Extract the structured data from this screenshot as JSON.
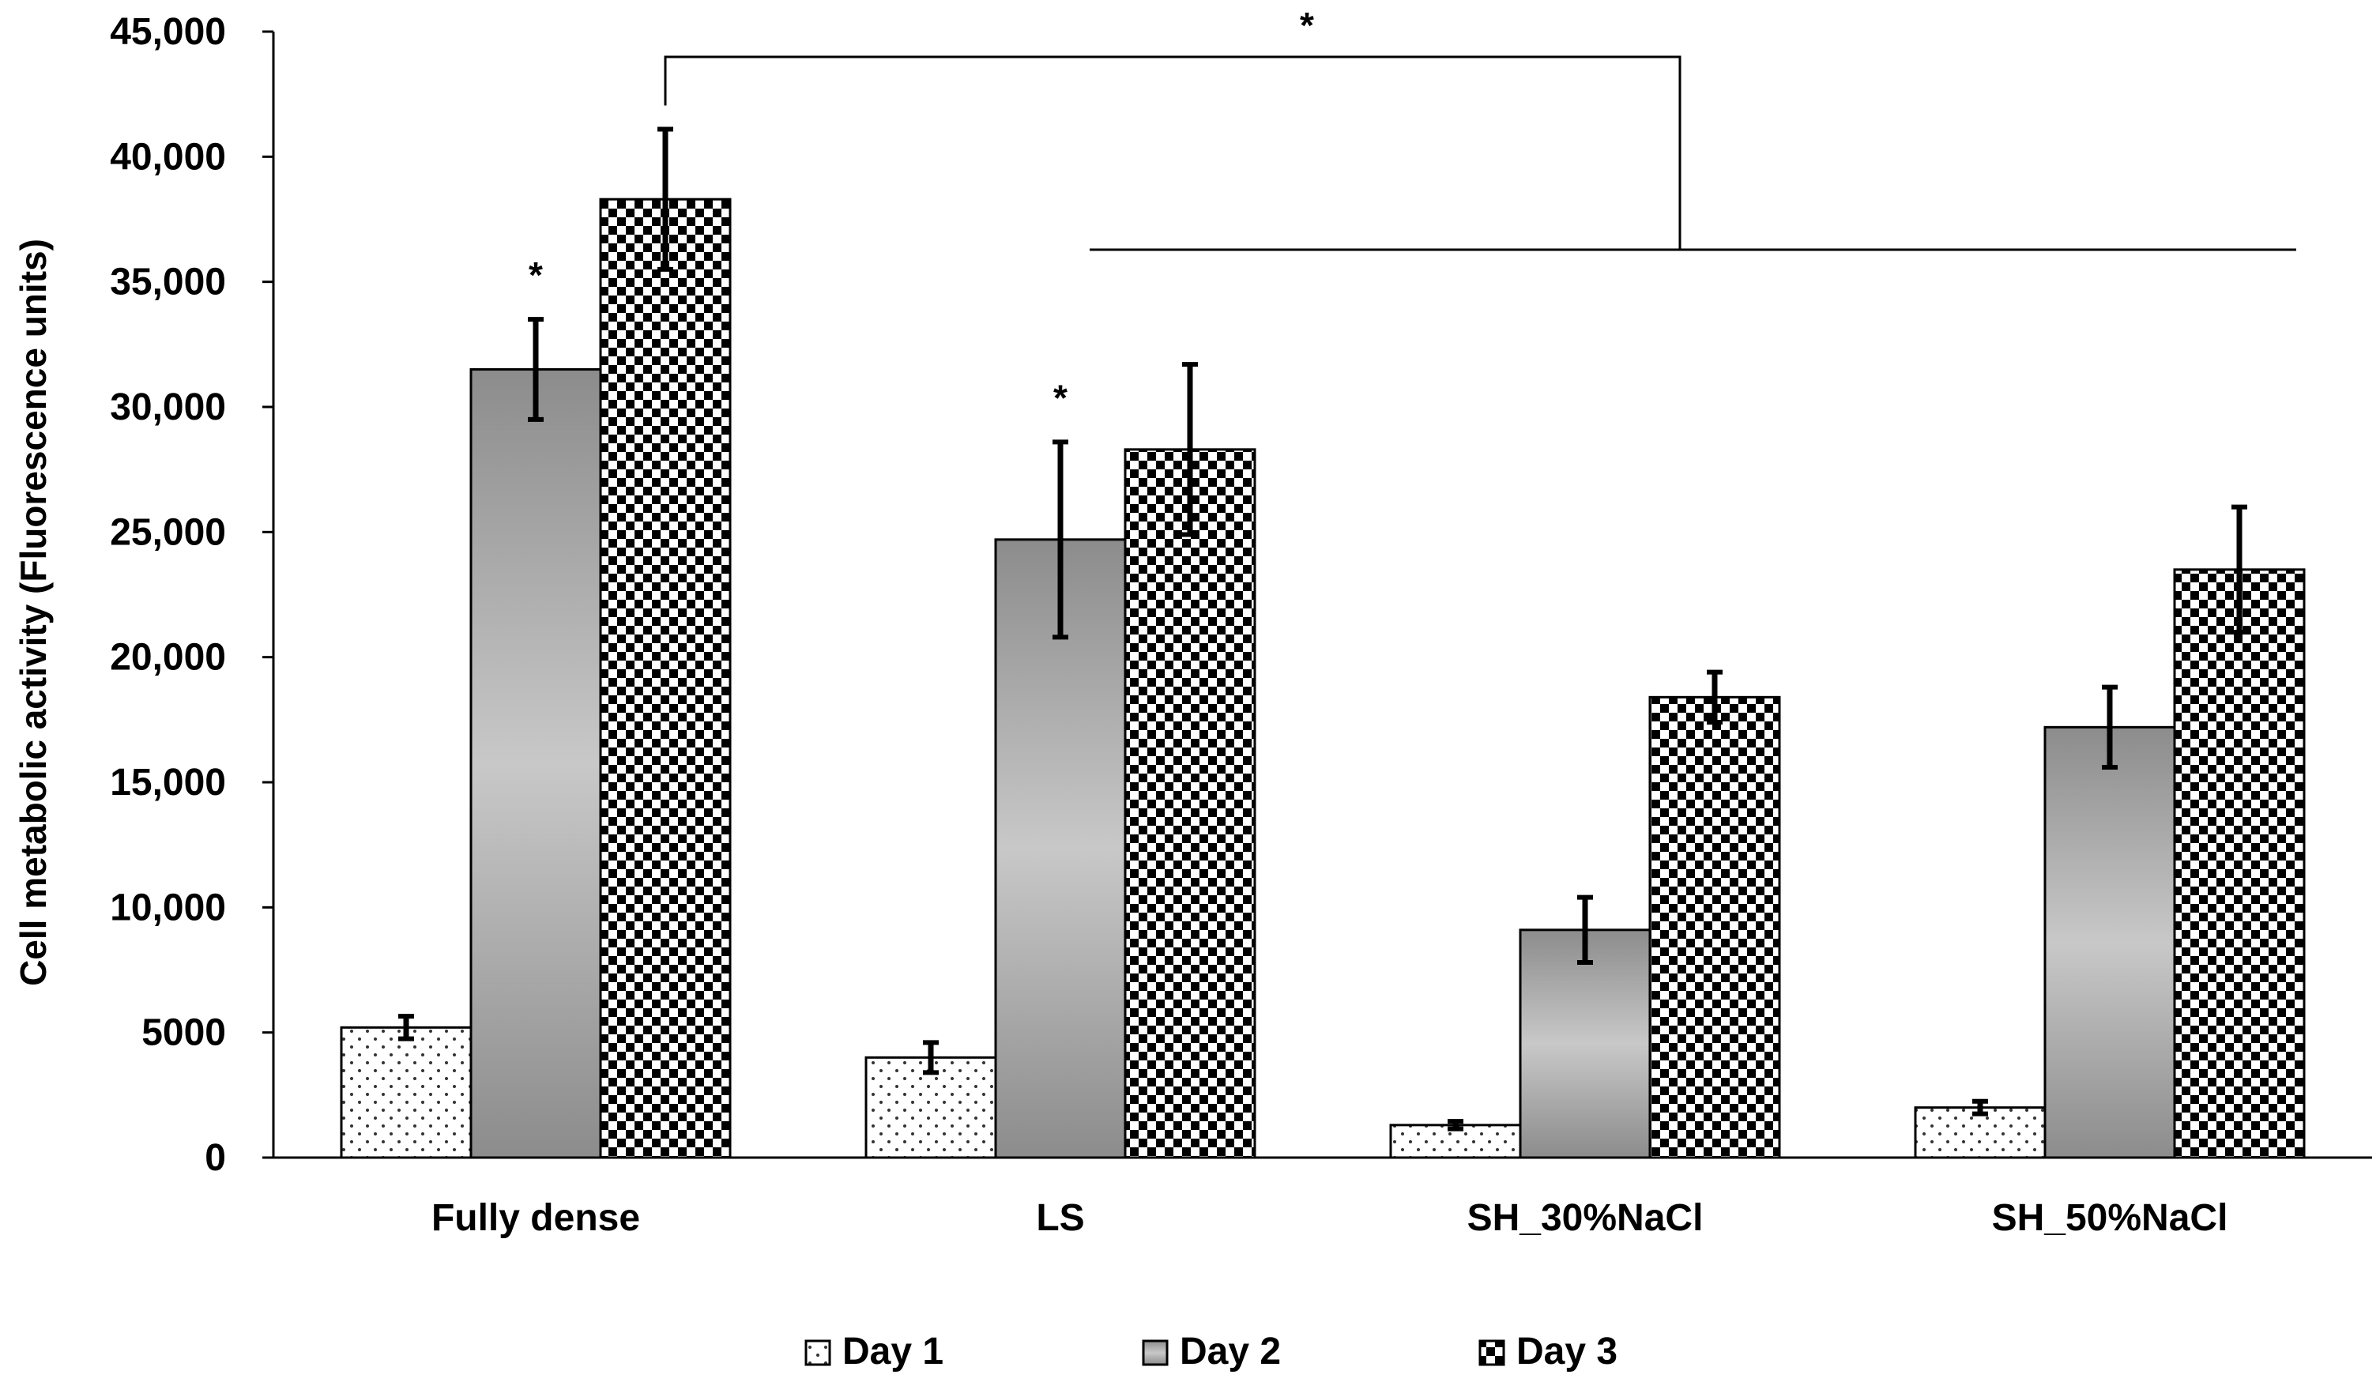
{
  "chart_data": {
    "type": "bar",
    "title": "",
    "xlabel": "",
    "ylabel": "Cell metabolic activity (Fluorescence units)",
    "ylim": [
      0,
      45000
    ],
    "y_ticks": [
      0,
      5000,
      10000,
      15000,
      20000,
      25000,
      30000,
      35000,
      40000,
      45000
    ],
    "y_tick_labels": [
      "0",
      "5000",
      "10,000",
      "15,000",
      "20,000",
      "25,000",
      "30,000",
      "35,000",
      "40,000",
      "45,000"
    ],
    "grid": false,
    "legend_position": "bottom",
    "categories": [
      "Fully dense",
      "LS",
      "SH_30%NaCl",
      "SH_50%NaCl"
    ],
    "series": [
      {
        "name": "Day 1",
        "pattern": "dots",
        "values": [
          5200,
          4000,
          1300,
          2000
        ],
        "errors": [
          450,
          600,
          150,
          250
        ]
      },
      {
        "name": "Day 2",
        "pattern": "gradient-gray",
        "values": [
          31500,
          24700,
          9100,
          17200
        ],
        "errors": [
          2000,
          3900,
          1300,
          1600
        ]
      },
      {
        "name": "Day 3",
        "pattern": "checker",
        "values": [
          38300,
          28300,
          18400,
          23500
        ],
        "errors": [
          2800,
          3400,
          1000,
          2500
        ]
      }
    ],
    "annotations": [
      {
        "text": "*",
        "target": "Fully dense / Day 2"
      },
      {
        "text": "*",
        "target": "LS / Day 2"
      },
      {
        "text": "*",
        "target": "Fully dense Day 3 vs LS, SH_30%NaCl, SH_50%NaCl"
      }
    ],
    "colors": {
      "day2_light": "#c8c8c8",
      "day2_dark": "#8c8c8c",
      "axis": "#000000"
    }
  }
}
